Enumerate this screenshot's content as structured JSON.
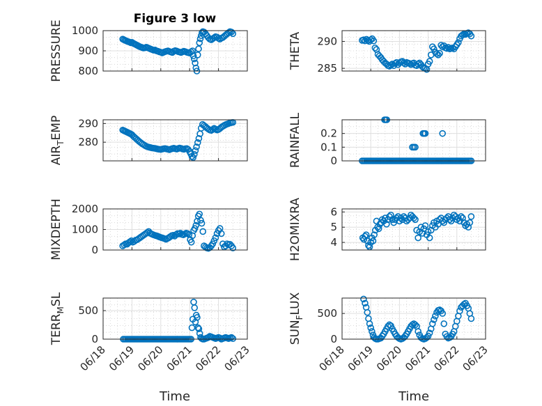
{
  "figure": {
    "title": "Figure 3 low",
    "marker_color": "#0072BD",
    "x_ticks": [
      "06/18",
      "06/19",
      "06/20",
      "06/21",
      "06/22",
      "06/23"
    ],
    "xlabel": "Time"
  },
  "chart_data": [
    {
      "type": "scatter",
      "ylabel": "PRESSURE",
      "xlim": [
        0,
        5
      ],
      "ylim": [
        800,
        1000
      ],
      "yticks": [
        "800",
        "900",
        "1000"
      ],
      "grid": true,
      "x": [
        0.68,
        0.72,
        0.76,
        0.8,
        0.84,
        0.88,
        0.92,
        0.96,
        1.0,
        1.04,
        1.08,
        1.12,
        1.16,
        1.2,
        1.24,
        1.28,
        1.32,
        1.36,
        1.4,
        1.45,
        1.5,
        1.55,
        1.6,
        1.65,
        1.7,
        1.75,
        1.8,
        1.85,
        1.9,
        1.95,
        2.0,
        2.05,
        2.1,
        2.15,
        2.2,
        2.25,
        2.3,
        2.35,
        2.4,
        2.45,
        2.5,
        2.55,
        2.6,
        2.65,
        2.7,
        2.75,
        2.8,
        2.85,
        2.9,
        2.95,
        3.0,
        3.05,
        3.1,
        3.13,
        3.16,
        3.19,
        3.22,
        3.25,
        3.28,
        3.31,
        3.34,
        3.37,
        3.4,
        3.43,
        3.46,
        3.5,
        3.55,
        3.6,
        3.65,
        3.7,
        3.75,
        3.8,
        3.85,
        3.9,
        3.95,
        4.0,
        4.05,
        4.1,
        4.15,
        4.2,
        4.25,
        4.3,
        4.35,
        4.4,
        4.45,
        4.5
      ],
      "y": [
        958,
        955,
        952,
        950,
        947,
        945,
        943,
        940,
        942,
        938,
        935,
        932,
        929,
        926,
        923,
        920,
        918,
        916,
        914,
        915,
        918,
        915,
        912,
        909,
        906,
        903,
        904,
        900,
        898,
        895,
        893,
        890,
        893,
        896,
        898,
        900,
        897,
        894,
        892,
        898,
        901,
        899,
        896,
        894,
        892,
        895,
        898,
        896,
        893,
        891,
        889,
        895,
        900,
        875,
        860,
        840,
        815,
        800,
        880,
        910,
        940,
        960,
        975,
        990,
        995,
        993,
        985,
        975,
        965,
        958,
        955,
        960,
        965,
        970,
        968,
        962,
        958,
        963,
        966,
        972,
        978,
        984,
        990,
        995,
        993,
        985
      ]
    },
    {
      "type": "scatter",
      "ylabel": "THETA",
      "xlim": [
        0,
        5
      ],
      "ylim": [
        284.5,
        292
      ],
      "yticks": [
        "285",
        "290"
      ],
      "grid": true,
      "x": [
        0.7,
        0.75,
        0.8,
        0.85,
        0.9,
        0.95,
        1.0,
        1.05,
        1.1,
        1.15,
        1.2,
        1.25,
        1.3,
        1.35,
        1.4,
        1.45,
        1.5,
        1.55,
        1.6,
        1.65,
        1.7,
        1.75,
        1.8,
        1.85,
        1.9,
        1.95,
        2.0,
        2.05,
        2.1,
        2.15,
        2.2,
        2.25,
        2.3,
        2.35,
        2.4,
        2.45,
        2.5,
        2.55,
        2.6,
        2.65,
        2.7,
        2.75,
        2.8,
        2.85,
        2.9,
        2.95,
        3.0,
        3.05,
        3.1,
        3.15,
        3.2,
        3.25,
        3.3,
        3.35,
        3.4,
        3.45,
        3.5,
        3.55,
        3.6,
        3.65,
        3.7,
        3.75,
        3.8,
        3.85,
        3.9,
        3.95,
        4.0,
        4.05,
        4.1,
        4.15,
        4.2,
        4.25,
        4.3,
        4.35,
        4.4,
        4.45,
        4.5
      ],
      "y": [
        290.2,
        290.3,
        290.1,
        290.4,
        290.2,
        290.0,
        290.3,
        290.5,
        290.1,
        288.8,
        288.5,
        287.6,
        287.3,
        287.0,
        286.6,
        286.3,
        286.0,
        285.8,
        285.5,
        285.4,
        285.6,
        285.8,
        285.5,
        285.9,
        286.1,
        285.7,
        286.0,
        286.2,
        286.3,
        286.0,
        285.8,
        286.1,
        286.0,
        285.9,
        285.7,
        285.9,
        286.0,
        285.6,
        285.5,
        285.8,
        286.0,
        285.7,
        285.3,
        285.1,
        285.0,
        284.8,
        285.8,
        286.3,
        287.5,
        289.0,
        288.6,
        288.0,
        287.7,
        287.5,
        287.8,
        289.3,
        289.0,
        289.2,
        288.8,
        288.7,
        288.9,
        288.6,
        288.7,
        288.8,
        288.6,
        289.0,
        289.4,
        289.8,
        290.5,
        291.0,
        291.2,
        291.4,
        291.3,
        291.5,
        291.6,
        291.4,
        291.0
      ]
    },
    {
      "type": "scatter",
      "ylabel": "AIR_TEMP",
      "xlim": [
        0,
        5
      ],
      "ylim": [
        270,
        292
      ],
      "yticks": [
        "280",
        "290"
      ],
      "grid": true,
      "x": [
        0.68,
        0.72,
        0.76,
        0.8,
        0.84,
        0.88,
        0.92,
        0.96,
        1.0,
        1.05,
        1.1,
        1.15,
        1.2,
        1.25,
        1.3,
        1.35,
        1.4,
        1.45,
        1.5,
        1.55,
        1.6,
        1.65,
        1.7,
        1.75,
        1.8,
        1.85,
        1.9,
        1.95,
        2.0,
        2.05,
        2.1,
        2.15,
        2.2,
        2.25,
        2.3,
        2.35,
        2.4,
        2.45,
        2.5,
        2.55,
        2.6,
        2.65,
        2.7,
        2.75,
        2.8,
        2.85,
        2.9,
        2.95,
        3.0,
        3.04,
        3.08,
        3.12,
        3.16,
        3.2,
        3.24,
        3.28,
        3.32,
        3.36,
        3.4,
        3.45,
        3.5,
        3.55,
        3.6,
        3.65,
        3.7,
        3.75,
        3.8,
        3.85,
        3.9,
        3.95,
        4.0,
        4.05,
        4.1,
        4.15,
        4.2,
        4.25,
        4.3,
        4.35,
        4.4,
        4.45,
        4.5
      ],
      "y": [
        286.5,
        286.2,
        285.9,
        285.6,
        285.3,
        285.0,
        284.7,
        284.4,
        284.0,
        283.2,
        282.5,
        281.8,
        281.1,
        280.4,
        279.8,
        279.2,
        278.7,
        278.2,
        277.8,
        277.5,
        277.3,
        277.1,
        276.9,
        276.8,
        276.7,
        276.5,
        276.3,
        276.2,
        276.1,
        276.3,
        276.5,
        276.6,
        276.4,
        276.2,
        276.0,
        276.3,
        276.6,
        276.8,
        276.5,
        276.3,
        276.6,
        276.9,
        276.7,
        276.4,
        276.2,
        276.5,
        276.6,
        276.1,
        275.0,
        273.8,
        272.4,
        271.8,
        273.5,
        275.5,
        277.5,
        279.8,
        282.0,
        284.5,
        287.5,
        289.5,
        288.9,
        288.3,
        287.6,
        287.0,
        286.5,
        286.3,
        286.8,
        287.4,
        287.0,
        286.5,
        286.8,
        287.3,
        288.0,
        288.5,
        289.0,
        289.4,
        289.7,
        290.0,
        290.3,
        290.5,
        290.6
      ]
    },
    {
      "type": "scatter",
      "ylabel": "RAINFALL",
      "xlim": [
        0,
        5
      ],
      "ylim": [
        0,
        0.3
      ],
      "yticks": [
        "0",
        "0.1",
        "0.2"
      ],
      "grid": true,
      "x": [
        0.7,
        0.75,
        0.8,
        0.85,
        0.9,
        0.95,
        1.0,
        1.05,
        1.1,
        1.15,
        1.2,
        1.25,
        1.3,
        1.35,
        1.4,
        1.45,
        1.5,
        1.55,
        1.6,
        1.65,
        1.7,
        1.75,
        1.8,
        1.85,
        1.9,
        1.95,
        2.0,
        2.05,
        2.1,
        2.15,
        2.2,
        2.25,
        2.3,
        2.35,
        2.4,
        2.45,
        2.5,
        2.55,
        2.6,
        2.65,
        2.7,
        2.75,
        2.8,
        2.85,
        2.9,
        2.95,
        3.0,
        3.05,
        3.1,
        3.15,
        3.2,
        3.25,
        3.3,
        3.35,
        3.4,
        3.45,
        3.5,
        3.55,
        3.6,
        3.65,
        3.7,
        3.75,
        3.8,
        3.85,
        3.9,
        3.95,
        4.0,
        4.05,
        4.1,
        4.15,
        4.2,
        4.25,
        4.3,
        4.35,
        4.4,
        4.45,
        4.5,
        1.48,
        1.52,
        1.56,
        2.45,
        2.5,
        2.55,
        2.82,
        2.86,
        2.9,
        3.5
      ],
      "y": [
        0,
        0,
        0,
        0,
        0,
        0,
        0,
        0,
        0,
        0,
        0,
        0,
        0,
        0,
        0,
        0,
        0,
        0,
        0,
        0,
        0,
        0,
        0,
        0,
        0,
        0,
        0,
        0,
        0,
        0,
        0,
        0,
        0,
        0,
        0,
        0,
        0,
        0,
        0,
        0,
        0,
        0,
        0,
        0,
        0,
        0,
        0,
        0,
        0,
        0,
        0,
        0,
        0,
        0,
        0,
        0,
        0,
        0,
        0,
        0,
        0,
        0,
        0,
        0,
        0,
        0,
        0,
        0,
        0,
        0,
        0,
        0,
        0,
        0,
        0,
        0,
        0,
        0.3,
        0.3,
        0.3,
        0.1,
        0.1,
        0.1,
        0.2,
        0.2,
        0.2,
        0.2
      ]
    },
    {
      "type": "scatter",
      "ylabel": "MIXDEPTH",
      "xlim": [
        0,
        5
      ],
      "ylim": [
        0,
        2000
      ],
      "yticks": [
        "0",
        "1000",
        "2000"
      ],
      "grid": true,
      "x": [
        0.68,
        0.73,
        0.78,
        0.83,
        0.88,
        0.93,
        0.98,
        1.03,
        1.08,
        1.13,
        1.18,
        1.23,
        1.28,
        1.33,
        1.38,
        1.43,
        1.48,
        1.53,
        1.58,
        1.63,
        1.68,
        1.73,
        1.78,
        1.83,
        1.88,
        1.93,
        1.98,
        2.03,
        2.08,
        2.13,
        2.18,
        2.23,
        2.28,
        2.33,
        2.38,
        2.43,
        2.48,
        2.53,
        2.58,
        2.63,
        2.68,
        2.73,
        2.78,
        2.83,
        2.88,
        2.93,
        2.98,
        3.02,
        3.06,
        3.1,
        3.14,
        3.18,
        3.22,
        3.26,
        3.3,
        3.34,
        3.38,
        3.42,
        3.46,
        3.5,
        3.55,
        3.6,
        3.65,
        3.7,
        3.75,
        3.8,
        3.85,
        3.9,
        3.95,
        4.0,
        4.05,
        4.1,
        4.15,
        4.2,
        4.25,
        4.3,
        4.35,
        4.4,
        4.45,
        4.5
      ],
      "y": [
        200,
        250,
        300,
        280,
        350,
        400,
        450,
        380,
        420,
        480,
        500,
        550,
        600,
        650,
        700,
        750,
        800,
        850,
        900,
        820,
        780,
        750,
        720,
        700,
        680,
        650,
        620,
        600,
        580,
        550,
        520,
        560,
        600,
        650,
        700,
        720,
        680,
        750,
        800,
        780,
        820,
        760,
        740,
        780,
        820,
        800,
        750,
        500,
        380,
        700,
        950,
        1050,
        1200,
        1400,
        1650,
        1750,
        1450,
        1300,
        900,
        200,
        150,
        100,
        80,
        120,
        200,
        300,
        450,
        600,
        800,
        950,
        1050,
        800,
        300,
        150,
        200,
        300,
        250,
        280,
        200,
        100
      ]
    },
    {
      "type": "scatter",
      "ylabel": "H2OMIXRA",
      "xlim": [
        0,
        5
      ],
      "ylim": [
        3.5,
        6.2
      ],
      "yticks": [
        "4",
        "5",
        "6"
      ],
      "grid": true,
      "x": [
        0.72,
        0.76,
        0.8,
        0.84,
        0.88,
        0.92,
        0.96,
        1.0,
        1.04,
        1.08,
        1.12,
        1.16,
        1.2,
        1.24,
        1.28,
        1.32,
        1.36,
        1.4,
        1.45,
        1.5,
        1.55,
        1.6,
        1.65,
        1.7,
        1.75,
        1.8,
        1.85,
        1.9,
        1.95,
        2.0,
        2.05,
        2.1,
        2.15,
        2.2,
        2.25,
        2.3,
        2.35,
        2.4,
        2.45,
        2.5,
        2.55,
        2.6,
        2.65,
        2.7,
        2.75,
        2.8,
        2.85,
        2.9,
        2.95,
        3.0,
        3.05,
        3.1,
        3.15,
        3.2,
        3.25,
        3.3,
        3.35,
        3.4,
        3.45,
        3.5,
        3.55,
        3.6,
        3.65,
        3.7,
        3.75,
        3.8,
        3.85,
        3.9,
        3.95,
        4.0,
        4.05,
        4.1,
        4.15,
        4.2,
        4.25,
        4.3,
        4.35,
        4.4,
        4.45,
        4.5
      ],
      "y": [
        4.3,
        4.2,
        4.4,
        4.5,
        4.1,
        3.8,
        3.7,
        4.0,
        4.3,
        4.1,
        4.5,
        4.8,
        5.4,
        5.0,
        4.9,
        5.2,
        5.3,
        5.5,
        5.4,
        5.6,
        5.2,
        5.5,
        5.7,
        5.8,
        5.5,
        5.3,
        5.5,
        5.6,
        5.7,
        5.4,
        5.6,
        5.5,
        5.7,
        5.6,
        5.4,
        5.5,
        5.6,
        5.8,
        5.7,
        5.6,
        5.5,
        4.8,
        4.3,
        4.7,
        5.0,
        4.6,
        4.9,
        5.1,
        4.5,
        4.7,
        4.3,
        4.8,
        5.1,
        5.3,
        5.0,
        5.4,
        5.2,
        5.5,
        5.6,
        5.4,
        5.3,
        5.5,
        5.6,
        5.7,
        5.5,
        5.4,
        5.6,
        5.8,
        5.7,
        5.5,
        5.6,
        5.4,
        5.7,
        5.6,
        5.3,
        5.1,
        5.2,
        5.0,
        5.3,
        5.7
      ]
    },
    {
      "type": "scatter",
      "ylabel": "TERR_MSL",
      "xlim": [
        0,
        5
      ],
      "ylim": [
        0,
        720
      ],
      "yticks": [
        "0",
        "500"
      ],
      "grid": true,
      "x": [
        0.7,
        0.75,
        0.8,
        0.85,
        0.9,
        0.95,
        1.0,
        1.05,
        1.1,
        1.15,
        1.2,
        1.25,
        1.3,
        1.35,
        1.4,
        1.45,
        1.5,
        1.55,
        1.6,
        1.65,
        1.7,
        1.75,
        1.8,
        1.85,
        1.9,
        1.95,
        2.0,
        2.05,
        2.1,
        2.15,
        2.2,
        2.25,
        2.3,
        2.35,
        2.4,
        2.45,
        2.5,
        2.55,
        2.6,
        2.65,
        2.7,
        2.75,
        2.8,
        2.85,
        2.9,
        2.95,
        3.0,
        3.05,
        3.08,
        3.11,
        3.14,
        3.17,
        3.2,
        3.23,
        3.26,
        3.29,
        3.32,
        3.35,
        3.38,
        3.42,
        3.46,
        3.5,
        3.55,
        3.6,
        3.65,
        3.7,
        3.75,
        3.8,
        3.85,
        3.9,
        3.95,
        4.0,
        4.05,
        4.1,
        4.15,
        4.2,
        4.25,
        4.3,
        4.35,
        4.4,
        4.45,
        4.5
      ],
      "y": [
        0,
        0,
        0,
        0,
        0,
        0,
        0,
        0,
        0,
        0,
        0,
        0,
        0,
        0,
        0,
        0,
        0,
        0,
        0,
        0,
        0,
        0,
        0,
        0,
        0,
        0,
        0,
        0,
        0,
        0,
        0,
        0,
        0,
        0,
        0,
        0,
        0,
        0,
        0,
        0,
        0,
        0,
        0,
        0,
        0,
        0,
        0,
        0,
        200,
        350,
        650,
        550,
        300,
        420,
        380,
        200,
        180,
        100,
        30,
        10,
        0,
        0,
        10,
        20,
        30,
        50,
        40,
        30,
        20,
        10,
        20,
        30,
        20,
        0,
        10,
        20,
        30,
        20,
        10,
        20,
        30,
        10
      ]
    },
    {
      "type": "scatter",
      "ylabel": "SUN_FLUX",
      "xlim": [
        0,
        5
      ],
      "ylim": [
        0,
        800
      ],
      "yticks": [
        "0",
        "500"
      ],
      "grid": true,
      "x": [
        0.75,
        0.8,
        0.84,
        0.88,
        0.92,
        0.96,
        1.0,
        1.04,
        1.08,
        1.12,
        1.16,
        1.2,
        1.25,
        1.3,
        1.35,
        1.4,
        1.45,
        1.5,
        1.55,
        1.6,
        1.65,
        1.7,
        1.75,
        1.8,
        1.85,
        1.9,
        1.95,
        2.0,
        2.05,
        2.1,
        2.15,
        2.2,
        2.25,
        2.3,
        2.35,
        2.4,
        2.45,
        2.5,
        2.55,
        2.6,
        2.65,
        2.7,
        2.75,
        2.8,
        2.85,
        2.9,
        2.95,
        3.0,
        3.05,
        3.1,
        3.15,
        3.2,
        3.25,
        3.3,
        3.35,
        3.4,
        3.45,
        3.5,
        3.55,
        3.6,
        3.65,
        3.7,
        3.75,
        3.8,
        3.85,
        3.9,
        3.95,
        4.0,
        4.05,
        4.1,
        4.15,
        4.2,
        4.25,
        4.3,
        4.35,
        4.4,
        4.45,
        4.5
      ],
      "y": [
        780,
        700,
        620,
        520,
        400,
        300,
        220,
        150,
        80,
        30,
        10,
        0,
        0,
        10,
        20,
        60,
        100,
        150,
        200,
        250,
        280,
        260,
        200,
        150,
        100,
        60,
        30,
        10,
        0,
        10,
        30,
        60,
        100,
        150,
        200,
        250,
        280,
        300,
        280,
        250,
        150,
        80,
        30,
        10,
        0,
        10,
        30,
        60,
        120,
        200,
        300,
        380,
        450,
        520,
        560,
        570,
        550,
        500,
        300,
        100,
        50,
        20,
        30,
        50,
        100,
        150,
        250,
        350,
        450,
        550,
        620,
        650,
        680,
        700,
        650,
        600,
        500,
        400
      ]
    }
  ]
}
